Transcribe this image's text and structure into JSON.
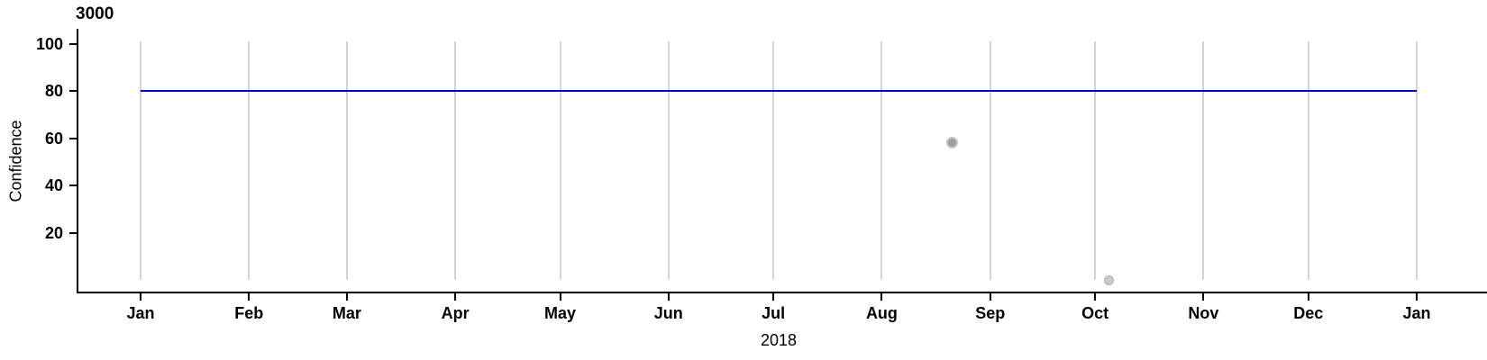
{
  "title": "3000",
  "colors": {
    "background": "#ffffff",
    "axis": "#000000",
    "text": "#000000",
    "gridline": "#d3d3d3",
    "reference_line": "#0000cd",
    "point_dark_fill": "#9e9e9e",
    "point_dark_edge": "#c5c5c5",
    "point_light_fill": "#c9c9c9",
    "point_light_edge": "#b2b2b2"
  },
  "chart_data": {
    "type": "scatter",
    "title": "3000",
    "xlabel": "2018",
    "ylabel": "Confidence",
    "x_scale": {
      "type": "date",
      "start": "2018-01-01",
      "end": "2019-01-01",
      "tick_labels": [
        "Jan",
        "Feb",
        "Mar",
        "Apr",
        "May",
        "Jun",
        "Jul",
        "Aug",
        "Sep",
        "Oct",
        "Nov",
        "Dec",
        "Jan"
      ],
      "tick_day_of_year": [
        0,
        31,
        59,
        90,
        120,
        151,
        181,
        212,
        243,
        273,
        304,
        334,
        365
      ]
    },
    "ylim": [
      0,
      100
    ],
    "y_ticks": [
      20,
      40,
      60,
      80,
      100
    ],
    "grid": {
      "vertical_month_lines": true,
      "horizontal_lines": false
    },
    "legend": "none",
    "reference_line": {
      "value": 80,
      "from_day": 0,
      "to_day": 365,
      "color": "#0000cd"
    },
    "points": [
      {
        "date": "2018-08-21",
        "day_of_year": 232,
        "value": 58,
        "appearance": "dark"
      },
      {
        "date": "2018-10-05",
        "day_of_year": 277,
        "value": 0,
        "appearance": "light"
      }
    ]
  }
}
